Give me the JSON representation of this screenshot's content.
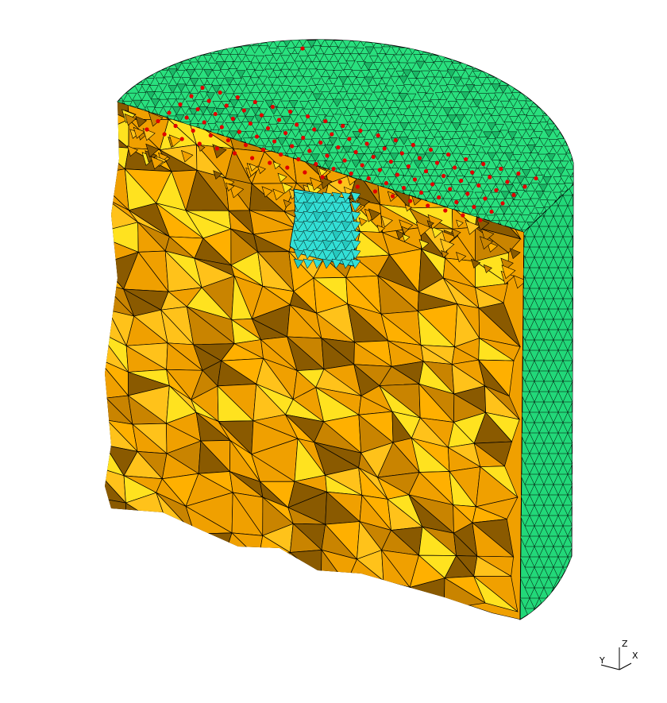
{
  "scene": {
    "background": "#ffffff",
    "colors": {
      "cap_green": "#29e07e",
      "cap_green_dark": "#1bb866",
      "side_green": "#22d879",
      "cut_orange": "#f0a000",
      "cut_orange_light": "#ffc21a",
      "cut_yellow": "#ffe21f",
      "cut_shadow": "#8a5a00",
      "inclusion_cyan": "#33e0d6",
      "sensor_red": "#e00000",
      "edge": "#000000"
    },
    "icons": {
      "triad": "axis-triad-icon"
    }
  },
  "triad": {
    "z_label": "Z",
    "y_label": "Y",
    "x_label": "X"
  }
}
